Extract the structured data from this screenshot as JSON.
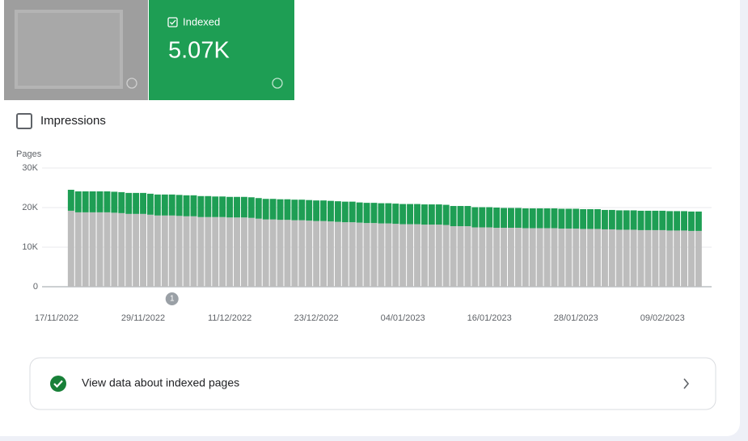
{
  "tiles": {
    "indexed": {
      "label": "Indexed",
      "value": "5.07K"
    }
  },
  "toggle": {
    "label": "Impressions"
  },
  "chart_data": {
    "type": "stacked_bar",
    "y_label": "Pages",
    "categories": [
      "17/11/2022",
      null,
      null,
      null,
      null,
      null,
      null,
      null,
      null,
      null,
      null,
      null,
      "29/11/2022",
      null,
      null,
      null,
      null,
      null,
      null,
      null,
      null,
      null,
      null,
      null,
      "11/12/2022",
      null,
      null,
      null,
      null,
      null,
      null,
      null,
      null,
      null,
      null,
      null,
      "23/12/2022",
      null,
      null,
      null,
      null,
      null,
      null,
      null,
      null,
      null,
      null,
      null,
      "04/01/2023",
      null,
      null,
      null,
      null,
      null,
      null,
      null,
      null,
      null,
      null,
      null,
      "16/01/2023",
      null,
      null,
      null,
      null,
      null,
      null,
      null,
      null,
      null,
      null,
      null,
      "28/01/2023",
      null,
      null,
      null,
      null,
      null,
      null,
      null,
      null,
      null,
      null,
      null,
      "09/02/2023",
      null,
      null,
      null,
      null,
      null
    ],
    "series": [
      {
        "color": "#bdbdbd",
        "values": [
          null,
          null,
          19200,
          18800,
          18800,
          18800,
          18800,
          18800,
          18700,
          18600,
          18400,
          18400,
          18400,
          18200,
          18000,
          18000,
          18000,
          17900,
          17800,
          17800,
          17600,
          17600,
          17600,
          17600,
          17500,
          17500,
          17500,
          17400,
          17200,
          17000,
          17000,
          16900,
          16900,
          16800,
          16800,
          16700,
          16600,
          16600,
          16500,
          16400,
          16300,
          16300,
          16200,
          16100,
          16100,
          16000,
          16000,
          15900,
          15800,
          15800,
          15800,
          15700,
          15700,
          15700,
          15600,
          15300,
          15300,
          15300,
          15000,
          15000,
          15000,
          14900,
          14900,
          14900,
          14900,
          14800,
          14800,
          14800,
          14800,
          14800,
          14700,
          14700,
          14700,
          14600,
          14600,
          14600,
          14500,
          14500,
          14400,
          14400,
          14400,
          14300,
          14300,
          14300,
          14300,
          14200,
          14200,
          14200,
          14100,
          14100
        ]
      },
      {
        "color": "#1e9e54",
        "values": [
          null,
          null,
          5300,
          5300,
          5300,
          5300,
          5300,
          5300,
          5300,
          5300,
          5300,
          5300,
          5300,
          5300,
          5300,
          5300,
          5300,
          5300,
          5300,
          5300,
          5300,
          5300,
          5200,
          5200,
          5200,
          5200,
          5200,
          5200,
          5200,
          5200,
          5200,
          5200,
          5200,
          5200,
          5200,
          5200,
          5200,
          5200,
          5200,
          5200,
          5200,
          5200,
          5100,
          5100,
          5100,
          5100,
          5100,
          5100,
          5100,
          5100,
          5100,
          5100,
          5100,
          5100,
          5100,
          5100,
          5100,
          5100,
          5100,
          5100,
          5100,
          5100,
          5000,
          5000,
          5000,
          5000,
          5000,
          5000,
          5000,
          5000,
          5000,
          5000,
          5000,
          5000,
          5000,
          5000,
          4900,
          4900,
          4900,
          4900,
          4900,
          4900,
          4900,
          4900,
          4900,
          4900,
          4900,
          4900,
          4900,
          4900
        ]
      }
    ],
    "ylim": [
      0,
      30000
    ],
    "yticks": [
      0,
      {
        "value": 10000,
        "label": "10K"
      },
      {
        "value": 20000,
        "label": "20K"
      },
      {
        "value": 30000,
        "label": "30K"
      }
    ],
    "grid": true,
    "annotations": [
      {
        "category_index": 16,
        "text": "1"
      }
    ]
  },
  "link": {
    "label": "View data about indexed pages"
  }
}
